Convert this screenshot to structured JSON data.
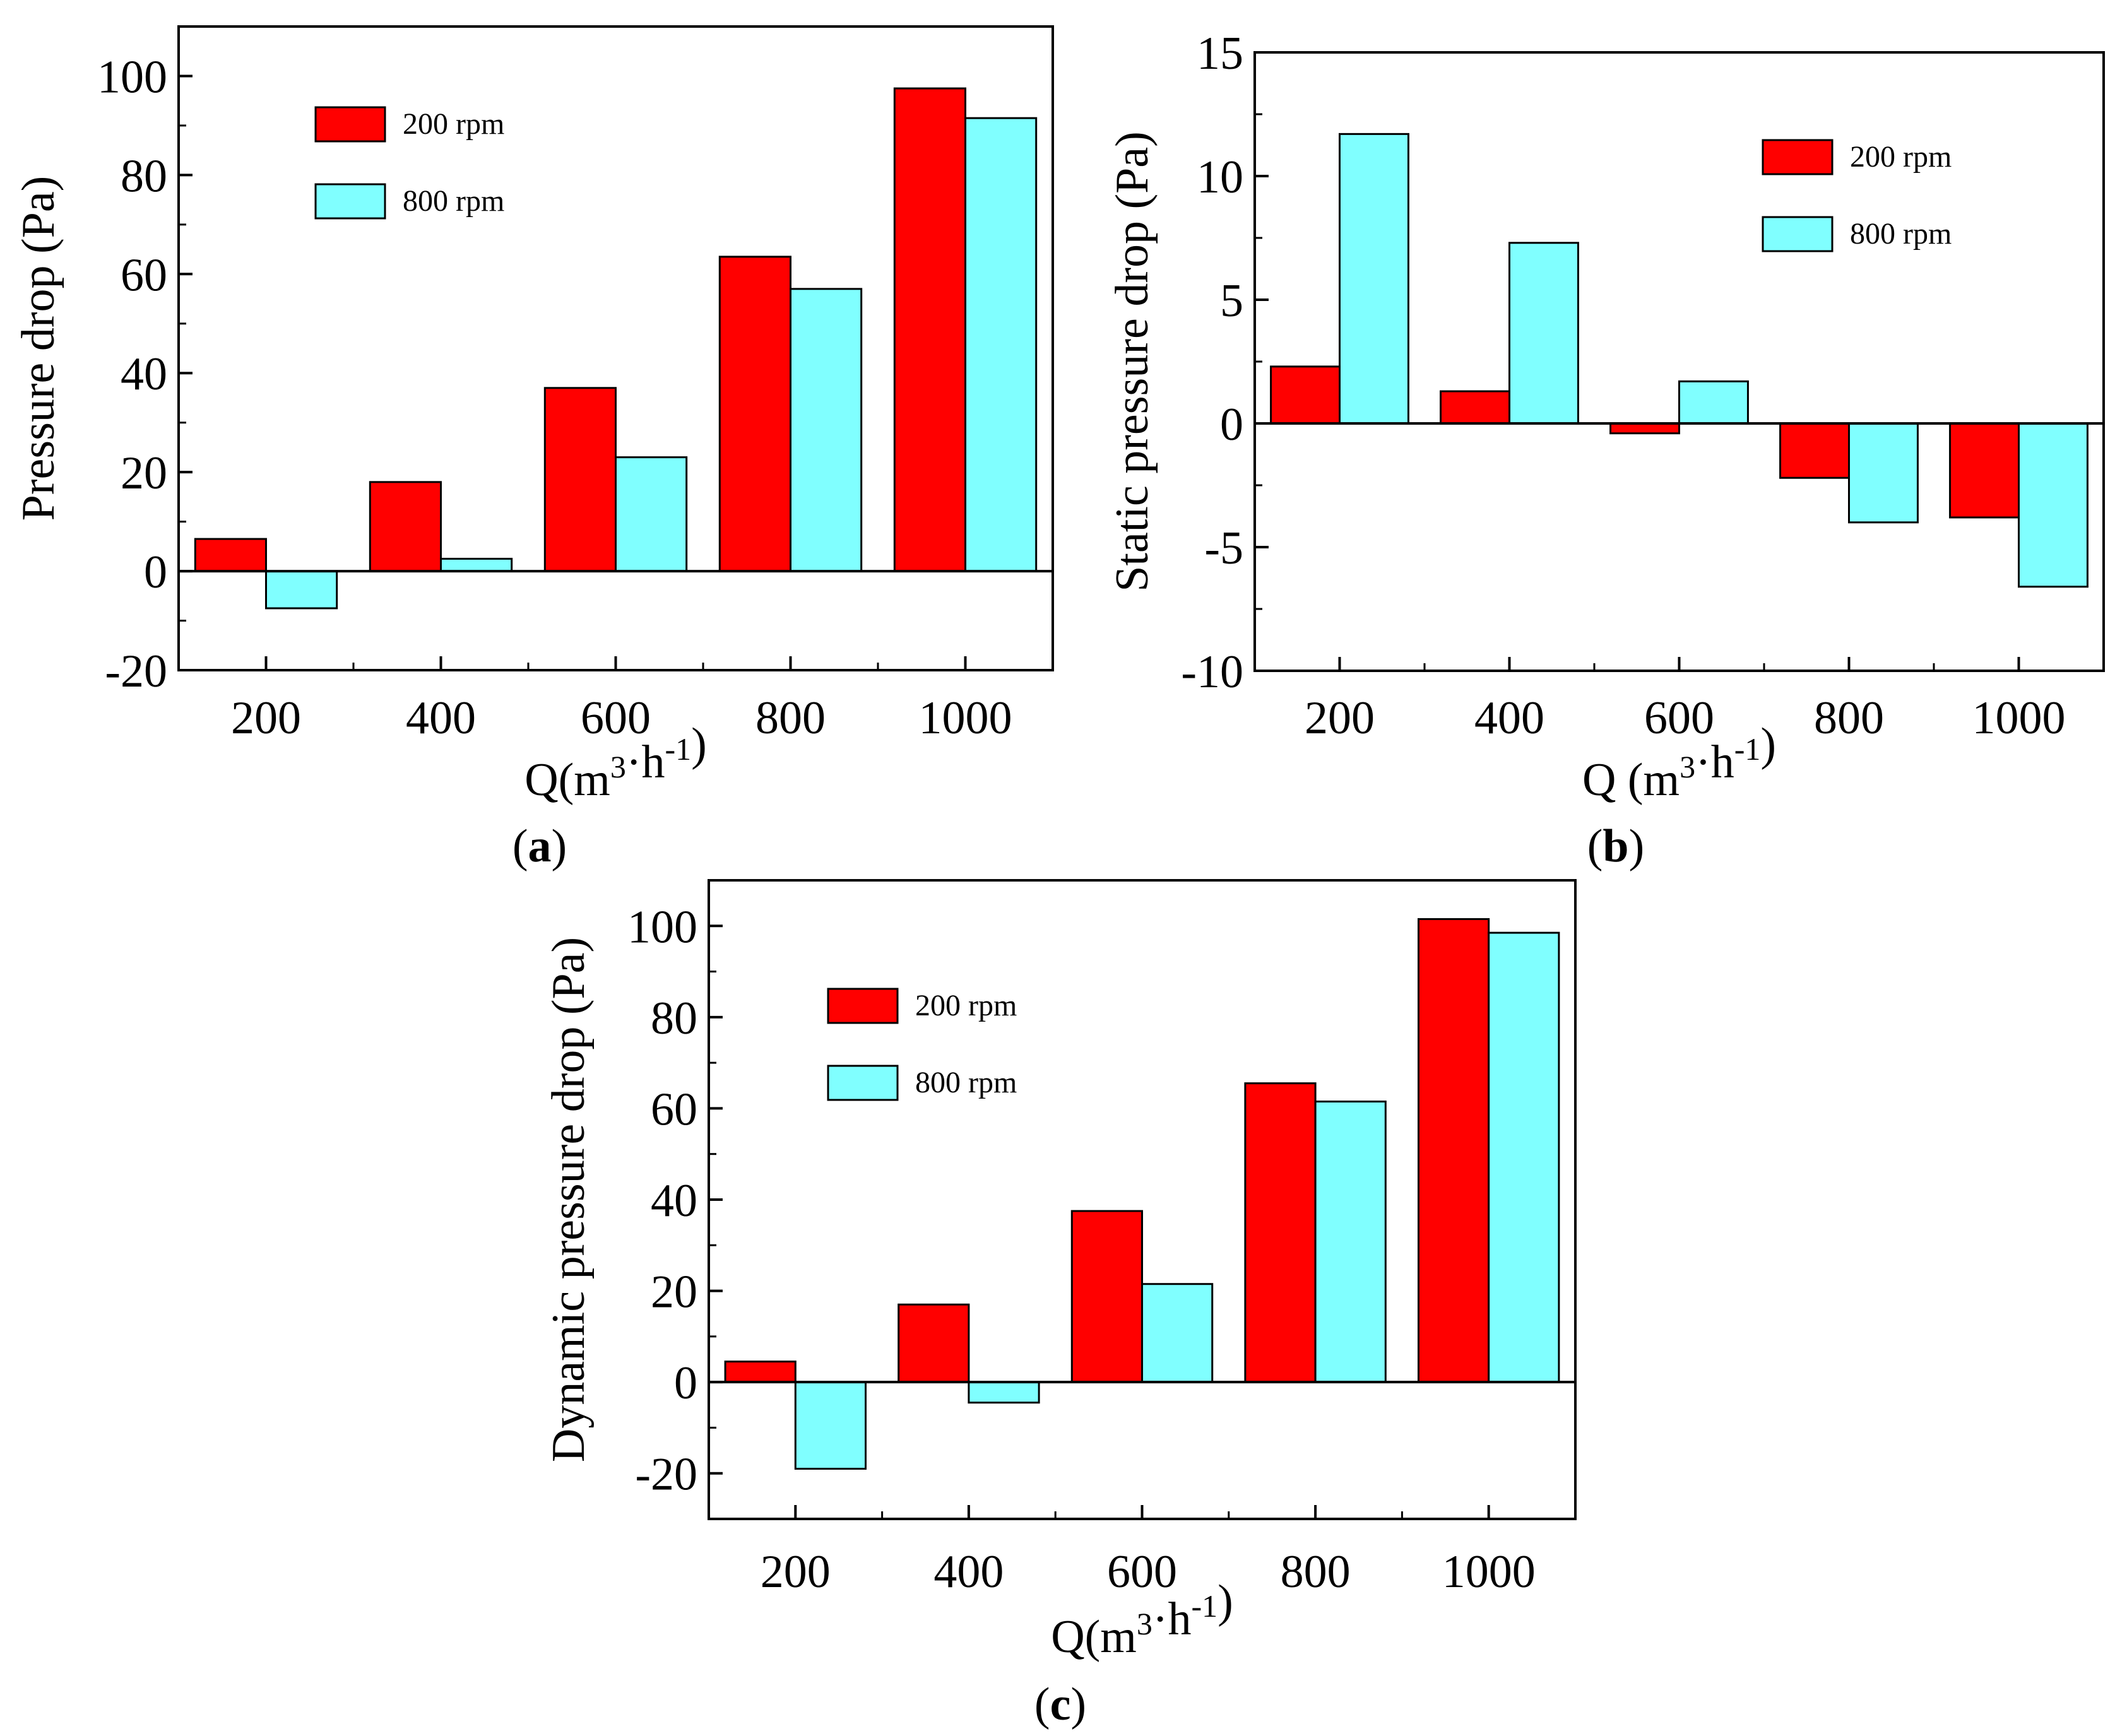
{
  "chart_data": [
    {
      "type": "bar",
      "panel_label": "a",
      "categories": [
        "200",
        "400",
        "600",
        "800",
        "1000"
      ],
      "series": [
        {
          "name": "200 rpm",
          "values": [
            6.5,
            18,
            37,
            63.5,
            97.5
          ],
          "color": "#ff0000"
        },
        {
          "name": "800 rpm",
          "values": [
            -7.5,
            2.5,
            23,
            57,
            91.5
          ],
          "color": "#80ffff"
        }
      ],
      "ylim": [
        -20,
        110
      ],
      "yticks": [
        -20,
        0,
        20,
        40,
        60,
        80,
        100
      ],
      "ytick_labels": [
        "-20",
        "0",
        "20",
        "40",
        "60",
        "80",
        "100"
      ],
      "ylabel": "Pressure drop (Pa)",
      "xlabel": {
        "lead": "Q(m",
        "sup1": "3",
        "mid": "·h",
        "sup2": "-1",
        "tail": ")"
      },
      "legend_position": "top-left"
    },
    {
      "type": "bar",
      "panel_label": "b",
      "categories": [
        "200",
        "400",
        "600",
        "800",
        "1000"
      ],
      "series": [
        {
          "name": "200 rpm",
          "values": [
            2.3,
            1.3,
            -0.4,
            -2.2,
            -3.8
          ],
          "color": "#ff0000"
        },
        {
          "name": "800 rpm",
          "values": [
            11.7,
            7.3,
            1.7,
            -4.0,
            -6.6
          ],
          "color": "#80ffff"
        }
      ],
      "ylim": [
        -10,
        15
      ],
      "yticks": [
        -10,
        -5,
        0,
        5,
        10,
        15
      ],
      "ytick_labels": [
        "-10",
        "-5",
        "0",
        "5",
        "10",
        "15"
      ],
      "ylabel": "Static pressure drop (Pa)",
      "xlabel": {
        "lead": "Q (m",
        "sup1": "3",
        "mid": "·h",
        "sup2": "-1",
        "tail": ")"
      },
      "legend_position": "top-right"
    },
    {
      "type": "bar",
      "panel_label": "c",
      "categories": [
        "200",
        "400",
        "600",
        "800",
        "1000"
      ],
      "series": [
        {
          "name": "200 rpm",
          "values": [
            4.5,
            17,
            37.5,
            65.5,
            101.5
          ],
          "color": "#ff0000"
        },
        {
          "name": "800 rpm",
          "values": [
            -19,
            -4.5,
            21.5,
            61.5,
            98.5
          ],
          "color": "#80ffff"
        }
      ],
      "ylim": [
        -30,
        110
      ],
      "yticks": [
        -20,
        0,
        20,
        40,
        60,
        80,
        100
      ],
      "ytick_labels": [
        "-20",
        "0",
        "20",
        "40",
        "60",
        "80",
        "100"
      ],
      "ylabel": "Dynamic pressure drop (Pa)",
      "xlabel": {
        "lead": "Q(m",
        "sup1": "3",
        "mid": "·h",
        "sup2": "-1",
        "tail": ")"
      },
      "legend_position": "top-left"
    }
  ]
}
